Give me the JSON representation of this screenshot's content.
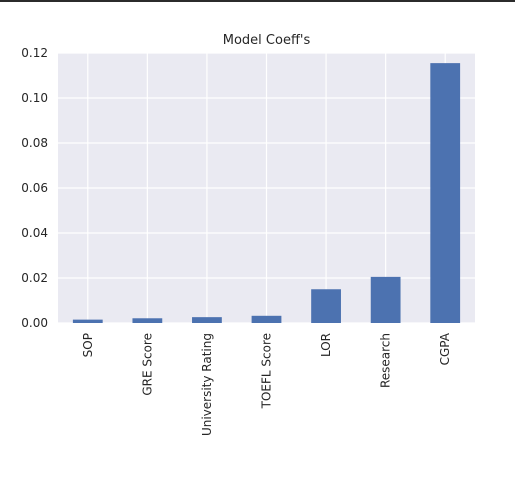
{
  "chart_data": {
    "type": "bar",
    "title": "Model Coeff's",
    "xlabel": "",
    "ylabel": "",
    "categories": [
      "SOP",
      "GRE Score",
      "University Rating",
      "TOEFL Score",
      "LOR",
      "Research",
      "CGPA"
    ],
    "values": [
      0.0015,
      0.0021,
      0.0026,
      0.0032,
      0.015,
      0.0205,
      0.1155
    ],
    "ylim": [
      0,
      0.12
    ],
    "yticks": [
      "0.00",
      "0.02",
      "0.04",
      "0.06",
      "0.08",
      "0.10",
      "0.12"
    ],
    "grid": true,
    "colors": {
      "bar": "#4c72b0",
      "plot_background": "#eaeaf2",
      "grid": "#ffffff",
      "text": "#262626"
    }
  }
}
